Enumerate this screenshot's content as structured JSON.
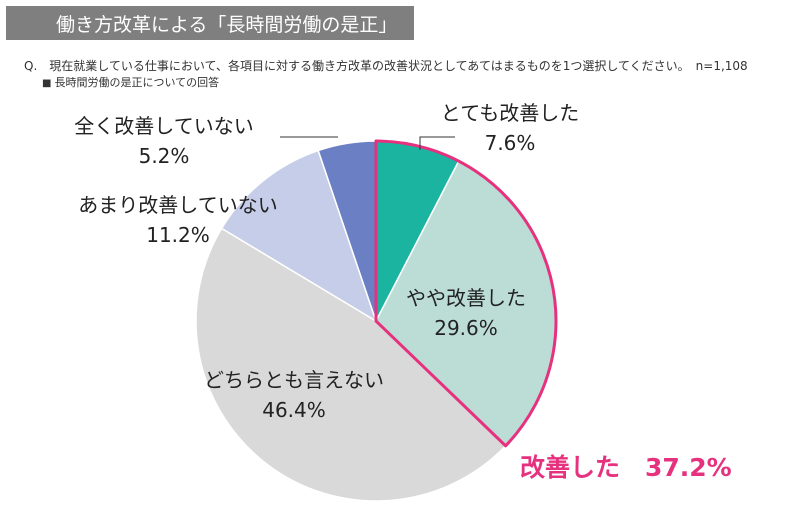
{
  "header": {
    "title": "働き方改革による「長時間労働の是正」",
    "question": "Q.　現在就業している仕事において、各項目に対する働き方改革の改善状況としてあてはまるものを1つ選択してください。　n=1,108",
    "subtitle_marker": "■",
    "subtitle": "長時間労働の是正についての回答"
  },
  "chart_data": {
    "type": "pie",
    "title": "働き方改革による「長時間労働の是正」",
    "slices": [
      {
        "label": "とても改善した",
        "value": 7.6,
        "value_text": "7.6%",
        "color": "#1ab4a0"
      },
      {
        "label": "やや改善した",
        "value": 29.6,
        "value_text": "29.6%",
        "color": "#bcddd6"
      },
      {
        "label": "どちらとも言えない",
        "value": 46.4,
        "value_text": "46.4%",
        "color": "#d9d9d9"
      },
      {
        "label": "あまり改善していない",
        "value": 11.2,
        "value_text": "11.2%",
        "color": "#c5cde8"
      },
      {
        "label": "全く改善していない",
        "value": 5.2,
        "value_text": "5.2%",
        "color": "#6a7fc4"
      }
    ],
    "start_angle_deg": 0,
    "direction": "clockwise",
    "highlight": {
      "label": "改善した　37.2%",
      "value": 37.2,
      "covers": [
        "とても改善した",
        "やや改善した"
      ],
      "color": "#e6317f"
    }
  }
}
